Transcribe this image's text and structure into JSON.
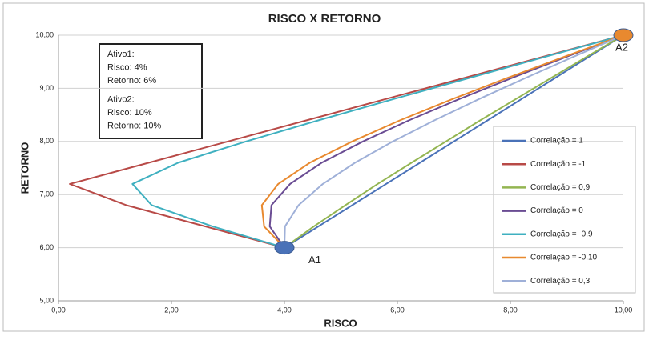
{
  "chart_data": {
    "type": "line",
    "title": "RISCO X RETORNO",
    "x_label": "RISCO",
    "y_label": "RETORNO",
    "xlim": [
      0,
      10
    ],
    "ylim": [
      5,
      10
    ],
    "xticks": [
      {
        "value": 0,
        "label": "0,00"
      },
      {
        "value": 2,
        "label": "2,00"
      },
      {
        "value": 4,
        "label": "4,00"
      },
      {
        "value": 6,
        "label": "6,00"
      },
      {
        "value": 8,
        "label": "8,00"
      },
      {
        "value": 10,
        "label": "10,00"
      }
    ],
    "yticks": [
      {
        "value": 5,
        "label": "5,00"
      },
      {
        "value": 6,
        "label": "6,00"
      },
      {
        "value": 7,
        "label": "7,00"
      },
      {
        "value": 8,
        "label": "8,00"
      },
      {
        "value": 9,
        "label": "9,00"
      },
      {
        "value": 10,
        "label": "10,00"
      }
    ],
    "grid": true,
    "legend": "right",
    "series": [
      {
        "name": "Correlação = 1",
        "color": "#4a72b8",
        "x": [
          4,
          4.6,
          5.2,
          5.8,
          6.4,
          7,
          7.6,
          8.2,
          8.8,
          9.4,
          10
        ],
        "values": [
          6,
          6.4,
          6.8,
          7.2,
          7.6,
          8,
          8.4,
          8.8,
          9.2,
          9.6,
          10
        ]
      },
      {
        "name": "Correlação = -1",
        "color": "#b84a47",
        "x": [
          4,
          2.6,
          1.2,
          0.2,
          1.6,
          3,
          4.4,
          5.8,
          7.2,
          8.6,
          10
        ],
        "values": [
          6,
          6.4,
          6.8,
          7.2,
          7.6,
          8,
          8.4,
          8.8,
          9.2,
          9.6,
          10
        ]
      },
      {
        "name": "Correlação = 0,9",
        "color": "#93b551",
        "x": [
          4,
          4.52,
          5.08,
          5.65,
          6.25,
          6.86,
          7.47,
          8.1,
          8.73,
          9.36,
          10
        ],
        "values": [
          6,
          6.4,
          6.8,
          7.2,
          7.6,
          8,
          8.4,
          8.8,
          9.2,
          9.6,
          10
        ]
      },
      {
        "name": "Correlação = 0",
        "color": "#6a4c93",
        "x": [
          4,
          3.74,
          3.77,
          4.1,
          4.66,
          5.39,
          6.21,
          7.1,
          8.04,
          9.01,
          10
        ],
        "values": [
          6,
          6.4,
          6.8,
          7.2,
          7.6,
          8,
          8.4,
          8.8,
          9.2,
          9.6,
          10
        ]
      },
      {
        "name": "Correlação = -0.9",
        "color": "#3fb0c0",
        "x": [
          4,
          2.73,
          1.65,
          1.31,
          2.12,
          3.32,
          4.61,
          5.94,
          7.29,
          8.64,
          10
        ],
        "values": [
          6,
          6.4,
          6.8,
          7.2,
          7.6,
          8,
          8.4,
          8.8,
          9.2,
          9.6,
          10
        ]
      },
      {
        "name": "Correlação = -0.10",
        "color": "#e8892f",
        "x": [
          4,
          3.64,
          3.6,
          3.89,
          4.45,
          5.2,
          6.05,
          6.98,
          7.96,
          8.97,
          10
        ],
        "values": [
          6,
          6.4,
          6.8,
          7.2,
          7.6,
          8,
          8.4,
          8.8,
          9.2,
          9.6,
          10
        ]
      },
      {
        "name": "Correlação = 0,3",
        "color": "#9fb0d8",
        "x": [
          4,
          4.01,
          4.25,
          4.68,
          5.25,
          5.92,
          6.66,
          7.45,
          8.28,
          9.13,
          10
        ],
        "values": [
          6,
          6.4,
          6.8,
          7.2,
          7.6,
          8,
          8.4,
          8.8,
          9.2,
          9.6,
          10
        ]
      }
    ],
    "points": [
      {
        "label": "A1",
        "x": 4,
        "y": 6,
        "color": "#4a72b8"
      },
      {
        "label": "A2",
        "x": 10,
        "y": 10,
        "color": "#e8892f"
      }
    ],
    "annotation": [
      "Ativo1:",
      "Risco: 4%",
      "Retorno: 6%",
      "Ativo2:",
      "Risco: 10%",
      "Retorno: 10%"
    ]
  }
}
